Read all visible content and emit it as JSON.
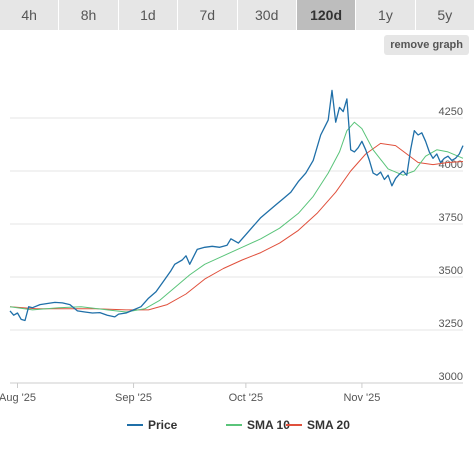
{
  "tabs": [
    {
      "label": "4h",
      "active": false
    },
    {
      "label": "8h",
      "active": false
    },
    {
      "label": "1d",
      "active": false
    },
    {
      "label": "7d",
      "active": false
    },
    {
      "label": "30d",
      "active": false
    },
    {
      "label": "120d",
      "active": true
    },
    {
      "label": "1y",
      "active": false
    },
    {
      "label": "5y",
      "active": false
    }
  ],
  "remove_graph_label": "remove graph",
  "chart_data": {
    "type": "line",
    "title": "",
    "xlabel": "",
    "ylabel": "",
    "ylim": [
      3000,
      4500
    ],
    "yticks": [
      3000,
      3250,
      3500,
      3750,
      4000,
      4250
    ],
    "xticks": [
      {
        "label": "Aug '25",
        "date": "2025-08-01"
      },
      {
        "label": "Sep '25",
        "date": "2025-09-01"
      },
      {
        "label": "Oct '25",
        "date": "2025-10-01"
      },
      {
        "label": "Nov '25",
        "date": "2025-11-01"
      }
    ],
    "x_start": "2025-07-30",
    "x_end": "2025-11-28",
    "grid": "horizontal",
    "legend_position": "bottom",
    "series": [
      {
        "name": "Price",
        "color": "#1f6fa8",
        "points": [
          [
            "2025-07-30",
            3340
          ],
          [
            "2025-07-31",
            3320
          ],
          [
            "2025-08-01",
            3330
          ],
          [
            "2025-08-02",
            3300
          ],
          [
            "2025-08-03",
            3295
          ],
          [
            "2025-08-04",
            3360
          ],
          [
            "2025-08-05",
            3355
          ],
          [
            "2025-08-07",
            3370
          ],
          [
            "2025-08-09",
            3375
          ],
          [
            "2025-08-11",
            3380
          ],
          [
            "2025-08-13",
            3378
          ],
          [
            "2025-08-15",
            3370
          ],
          [
            "2025-08-17",
            3340
          ],
          [
            "2025-08-19",
            3335
          ],
          [
            "2025-08-21",
            3330
          ],
          [
            "2025-08-23",
            3332
          ],
          [
            "2025-08-25",
            3320
          ],
          [
            "2025-08-27",
            3312
          ],
          [
            "2025-08-28",
            3325
          ],
          [
            "2025-08-30",
            3330
          ],
          [
            "2025-09-01",
            3345
          ],
          [
            "2025-09-03",
            3360
          ],
          [
            "2025-09-05",
            3400
          ],
          [
            "2025-09-07",
            3430
          ],
          [
            "2025-09-09",
            3480
          ],
          [
            "2025-09-11",
            3530
          ],
          [
            "2025-09-12",
            3560
          ],
          [
            "2025-09-14",
            3580
          ],
          [
            "2025-09-15",
            3600
          ],
          [
            "2025-09-16",
            3560
          ],
          [
            "2025-09-18",
            3630
          ],
          [
            "2025-09-20",
            3640
          ],
          [
            "2025-09-22",
            3645
          ],
          [
            "2025-09-24",
            3640
          ],
          [
            "2025-09-26",
            3650
          ],
          [
            "2025-09-27",
            3680
          ],
          [
            "2025-09-29",
            3660
          ],
          [
            "2025-10-01",
            3700
          ],
          [
            "2025-10-03",
            3740
          ],
          [
            "2025-10-05",
            3780
          ],
          [
            "2025-10-07",
            3810
          ],
          [
            "2025-10-09",
            3840
          ],
          [
            "2025-10-11",
            3870
          ],
          [
            "2025-10-13",
            3900
          ],
          [
            "2025-10-15",
            3950
          ],
          [
            "2025-10-17",
            3990
          ],
          [
            "2025-10-19",
            4050
          ],
          [
            "2025-10-21",
            4170
          ],
          [
            "2025-10-23",
            4240
          ],
          [
            "2025-10-24",
            4380
          ],
          [
            "2025-10-25",
            4230
          ],
          [
            "2025-10-26",
            4300
          ],
          [
            "2025-10-27",
            4280
          ],
          [
            "2025-10-28",
            4340
          ],
          [
            "2025-10-29",
            4100
          ],
          [
            "2025-10-30",
            4090
          ],
          [
            "2025-10-31",
            4110
          ],
          [
            "2025-11-01",
            4140
          ],
          [
            "2025-11-02",
            4100
          ],
          [
            "2025-11-03",
            4050
          ],
          [
            "2025-11-04",
            3990
          ],
          [
            "2025-11-05",
            3980
          ],
          [
            "2025-11-06",
            3995
          ],
          [
            "2025-11-07",
            3960
          ],
          [
            "2025-11-08",
            3980
          ],
          [
            "2025-11-09",
            3930
          ],
          [
            "2025-11-10",
            3965
          ],
          [
            "2025-11-11",
            3985
          ],
          [
            "2025-11-12",
            4000
          ],
          [
            "2025-11-13",
            3980
          ],
          [
            "2025-11-14",
            4100
          ],
          [
            "2025-11-15",
            4190
          ],
          [
            "2025-11-16",
            4170
          ],
          [
            "2025-11-17",
            4180
          ],
          [
            "2025-11-18",
            4140
          ],
          [
            "2025-11-19",
            4090
          ],
          [
            "2025-11-20",
            4060
          ],
          [
            "2025-11-21",
            4080
          ],
          [
            "2025-11-22",
            4040
          ],
          [
            "2025-11-23",
            4060
          ],
          [
            "2025-11-24",
            4070
          ],
          [
            "2025-11-25",
            4050
          ],
          [
            "2025-11-26",
            4060
          ],
          [
            "2025-11-27",
            4080
          ],
          [
            "2025-11-28",
            4120
          ]
        ]
      },
      {
        "name": "SMA 10",
        "color": "#5ac47a",
        "points": [
          [
            "2025-07-30",
            3360
          ],
          [
            "2025-08-05",
            3345
          ],
          [
            "2025-08-12",
            3355
          ],
          [
            "2025-08-18",
            3360
          ],
          [
            "2025-08-25",
            3345
          ],
          [
            "2025-08-30",
            3335
          ],
          [
            "2025-09-04",
            3350
          ],
          [
            "2025-09-08",
            3390
          ],
          [
            "2025-09-12",
            3450
          ],
          [
            "2025-09-16",
            3510
          ],
          [
            "2025-09-20",
            3560
          ],
          [
            "2025-09-25",
            3600
          ],
          [
            "2025-09-30",
            3640
          ],
          [
            "2025-10-05",
            3680
          ],
          [
            "2025-10-10",
            3730
          ],
          [
            "2025-10-15",
            3800
          ],
          [
            "2025-10-19",
            3880
          ],
          [
            "2025-10-23",
            3990
          ],
          [
            "2025-10-26",
            4090
          ],
          [
            "2025-10-28",
            4190
          ],
          [
            "2025-10-30",
            4230
          ],
          [
            "2025-11-01",
            4200
          ],
          [
            "2025-11-04",
            4100
          ],
          [
            "2025-11-08",
            4010
          ],
          [
            "2025-11-12",
            3980
          ],
          [
            "2025-11-15",
            4000
          ],
          [
            "2025-11-18",
            4070
          ],
          [
            "2025-11-21",
            4100
          ],
          [
            "2025-11-24",
            4090
          ],
          [
            "2025-11-28",
            4060
          ]
        ]
      },
      {
        "name": "SMA 20",
        "color": "#e0503c",
        "points": [
          [
            "2025-07-30",
            3360
          ],
          [
            "2025-08-06",
            3350
          ],
          [
            "2025-08-14",
            3350
          ],
          [
            "2025-08-22",
            3350
          ],
          [
            "2025-08-30",
            3345
          ],
          [
            "2025-09-05",
            3345
          ],
          [
            "2025-09-10",
            3370
          ],
          [
            "2025-09-15",
            3420
          ],
          [
            "2025-09-20",
            3490
          ],
          [
            "2025-09-25",
            3540
          ],
          [
            "2025-09-30",
            3580
          ],
          [
            "2025-10-05",
            3615
          ],
          [
            "2025-10-10",
            3660
          ],
          [
            "2025-10-15",
            3720
          ],
          [
            "2025-10-20",
            3800
          ],
          [
            "2025-10-25",
            3900
          ],
          [
            "2025-10-29",
            4000
          ],
          [
            "2025-11-02",
            4080
          ],
          [
            "2025-11-06",
            4130
          ],
          [
            "2025-11-10",
            4120
          ],
          [
            "2025-11-13",
            4080
          ],
          [
            "2025-11-16",
            4040
          ],
          [
            "2025-11-20",
            4030
          ],
          [
            "2025-11-24",
            4040
          ],
          [
            "2025-11-28",
            4045
          ]
        ]
      }
    ]
  }
}
